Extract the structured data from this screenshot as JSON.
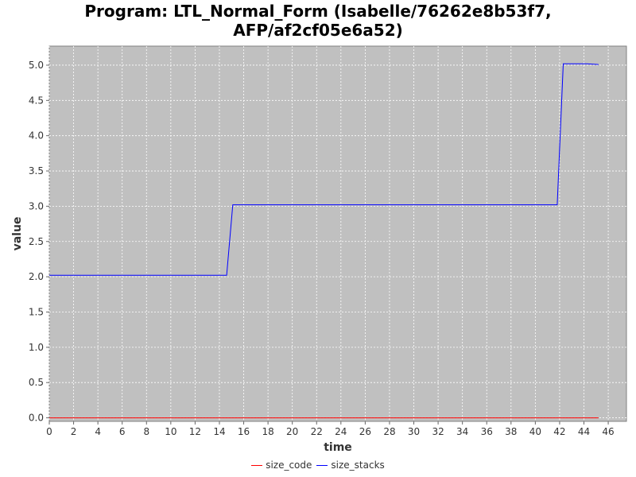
{
  "chart_data": {
    "type": "line",
    "title_lines": [
      "Program: LTL_Normal_Form (Isabelle/76262e8b53f7,",
      "AFP/af2cf05e6a52)"
    ],
    "xlabel": "time",
    "ylabel": "value",
    "xlim": [
      0,
      47.5
    ],
    "ylim": [
      -0.05,
      5.27
    ],
    "xticks": [
      0,
      2,
      4,
      6,
      8,
      10,
      12,
      14,
      16,
      18,
      20,
      22,
      24,
      26,
      28,
      30,
      32,
      34,
      36,
      38,
      40,
      42,
      44,
      46
    ],
    "yticks": [
      0.0,
      0.5,
      1.0,
      1.5,
      2.0,
      2.5,
      3.0,
      3.5,
      4.0,
      4.5,
      5.0
    ],
    "ytick_labels": [
      "0.0",
      "0.5",
      "1.0",
      "1.5",
      "2.0",
      "2.5",
      "3.0",
      "3.5",
      "4.0",
      "4.5",
      "5.0"
    ],
    "grid": true,
    "background": "#c0c0c0",
    "legend_position": "bottom",
    "series": [
      {
        "name": "size_code",
        "color": "#ff0000",
        "x": [
          0,
          45.2
        ],
        "y": [
          0.0,
          0.0
        ]
      },
      {
        "name": "size_stacks",
        "color": "#0000ff",
        "x": [
          0,
          14.6,
          15.1,
          41.8,
          42.3,
          44.2,
          45.2
        ],
        "y": [
          2.02,
          2.02,
          3.02,
          3.02,
          5.02,
          5.02,
          5.01
        ]
      }
    ]
  }
}
